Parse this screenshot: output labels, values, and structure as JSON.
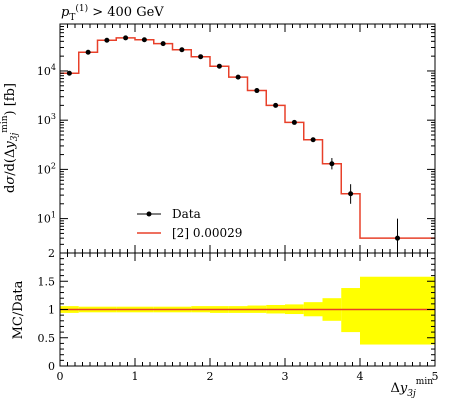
{
  "chart_data": [
    {
      "type": "line",
      "panel": "main",
      "annotation": "p_T^(1) > 400 GeV",
      "xlabel": "",
      "ylabel": "dσ/d(Δy_3j^min) [fb]",
      "yscale": "log",
      "xlim": [
        0,
        5
      ],
      "ylim": [
        2,
        90000
      ],
      "y_tick_labels": [
        "10^1",
        "10^2",
        "10^3",
        "10^4"
      ],
      "legend_placement": "lower-left",
      "series": [
        {
          "name": "Data",
          "style": "points-with-errors",
          "color": "#000000",
          "x": [
            0.125,
            0.375,
            0.625,
            0.875,
            1.125,
            1.375,
            1.625,
            1.875,
            2.125,
            2.375,
            2.625,
            2.875,
            3.125,
            3.375,
            3.625,
            3.875,
            4.5
          ],
          "y": [
            9000,
            24000,
            42000,
            47000,
            43000,
            36000,
            27000,
            19500,
            12500,
            7500,
            4000,
            2000,
            900,
            400,
            130,
            32,
            4
          ],
          "yerr_low": [
            0,
            0,
            0,
            0,
            0,
            0,
            0,
            0,
            0,
            0,
            0,
            0,
            0,
            0,
            30,
            12,
            2.5
          ],
          "yerr_high": [
            0,
            0,
            0,
            0,
            0,
            0,
            0,
            0,
            0,
            0,
            0,
            0,
            0,
            0,
            40,
            18,
            6
          ]
        },
        {
          "name": "[2] 0.00029",
          "style": "step",
          "color": "#e8402a",
          "bin_edges": [
            0,
            0.25,
            0.5,
            0.75,
            1.0,
            1.25,
            1.5,
            1.75,
            2.0,
            2.25,
            2.5,
            2.75,
            3.0,
            3.25,
            3.5,
            3.75,
            4.0,
            5.0
          ],
          "values": [
            9000,
            24000,
            42000,
            47000,
            43000,
            36000,
            27000,
            19500,
            12500,
            7500,
            4000,
            2000,
            900,
            400,
            130,
            32,
            4
          ]
        }
      ]
    },
    {
      "type": "area",
      "panel": "ratio",
      "xlabel": "Δy_3j^min",
      "ylabel": "MC/Data",
      "xlim": [
        0,
        5
      ],
      "ylim": [
        0,
        2
      ],
      "x_tick_labels": [
        "0",
        "1",
        "2",
        "3",
        "4",
        "5"
      ],
      "y_tick_labels": [
        "0",
        "0.5",
        "1",
        "1.5",
        "2"
      ],
      "band_color": "#ffff00",
      "line_color": "#e8402a",
      "bin_edges": [
        0,
        0.25,
        0.5,
        0.75,
        1.0,
        1.25,
        1.5,
        1.75,
        2.0,
        2.25,
        2.5,
        2.75,
        3.0,
        3.25,
        3.5,
        3.75,
        4.0,
        5.0
      ],
      "band_low": [
        0.94,
        0.95,
        0.95,
        0.95,
        0.95,
        0.95,
        0.95,
        0.95,
        0.94,
        0.94,
        0.94,
        0.93,
        0.92,
        0.88,
        0.8,
        0.6,
        0.38
      ],
      "band_high": [
        1.06,
        1.05,
        1.05,
        1.05,
        1.05,
        1.05,
        1.05,
        1.06,
        1.06,
        1.06,
        1.07,
        1.08,
        1.09,
        1.13,
        1.2,
        1.38,
        1.58
      ],
      "ratio": [
        1,
        1,
        1,
        1,
        1,
        1,
        1,
        1,
        1,
        1,
        1,
        1,
        1,
        1,
        1,
        1,
        1
      ]
    }
  ]
}
